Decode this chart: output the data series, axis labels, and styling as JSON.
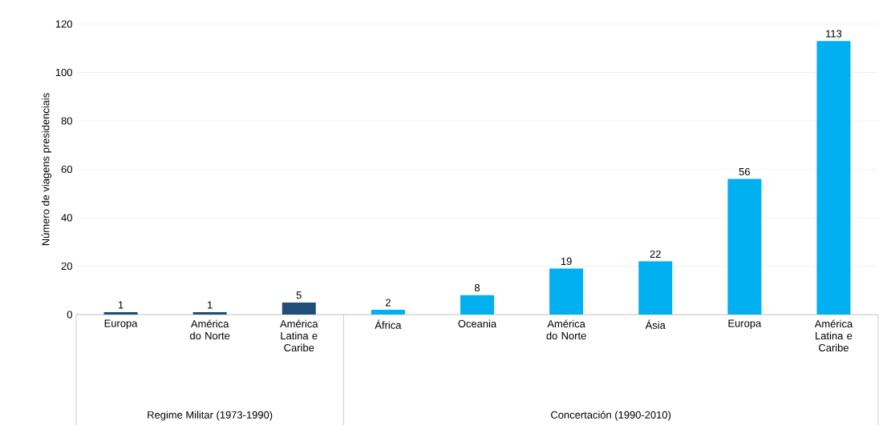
{
  "chart_data": {
    "type": "bar",
    "ylabel": "Número de viagens presidenciais",
    "categories": [
      "Europa",
      "América do Norte",
      "América Latina e Caribe",
      "África",
      "Oceania",
      "América do Norte",
      "Ásia",
      "Europa",
      "América Latina e Caribe"
    ],
    "values": [
      1,
      1,
      5,
      2,
      8,
      19,
      22,
      56,
      113
    ],
    "colors": [
      "#1f4e79",
      "#1f4e79",
      "#1f4e79",
      "#00b0f0",
      "#00b0f0",
      "#00b0f0",
      "#00b0f0",
      "#00b0f0",
      "#00b0f0"
    ],
    "ylim": [
      0,
      120
    ],
    "yticks": [
      0,
      20,
      40,
      60,
      80,
      100,
      120
    ],
    "grid": "y",
    "data_labels": true,
    "annotations": [
      "Regime Militar (1973-1990)",
      "Concertación (1990-2010)"
    ]
  }
}
